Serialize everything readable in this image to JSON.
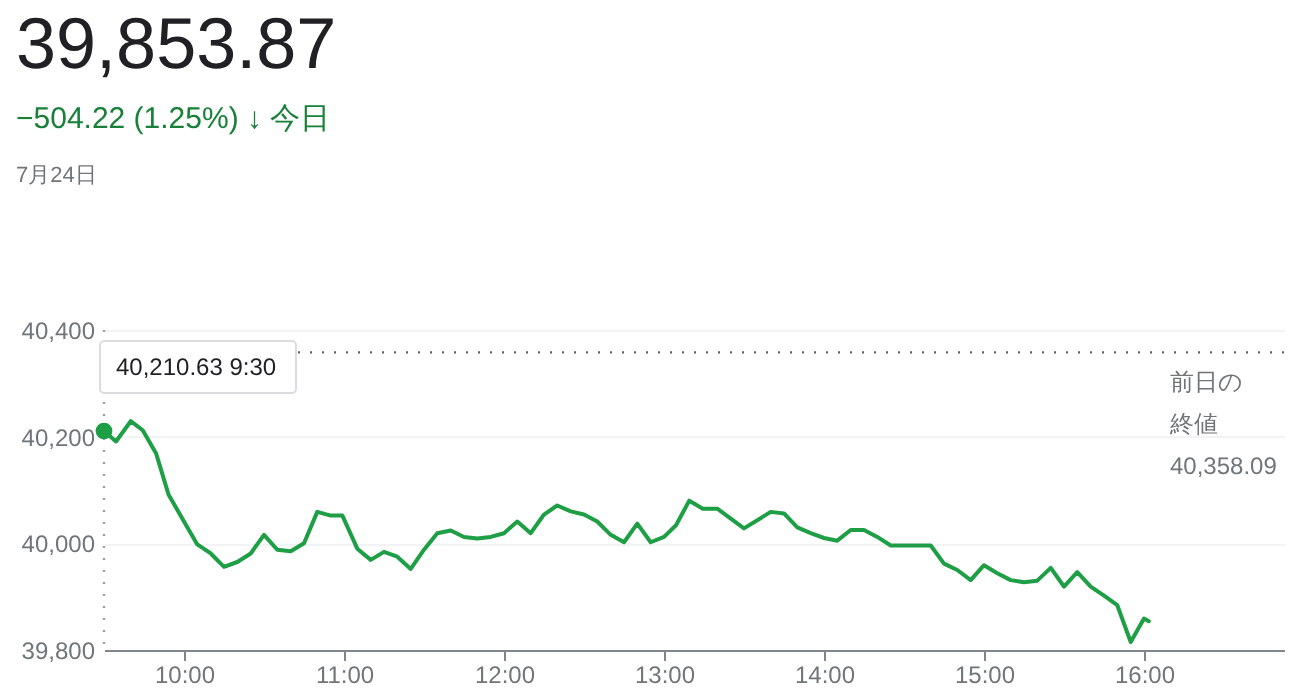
{
  "chart_data": {
    "type": "line",
    "title": "39,853.87",
    "subtitle": "−504.22 (1.25%) ↓ 今日",
    "annotations": [
      "7月24日",
      {
        "text": "40,210.63 9:30",
        "x": 9.5,
        "y": 40210.63
      }
    ],
    "x": [
      9.5,
      9.575,
      9.667,
      9.742,
      9.825,
      9.904,
      10.0,
      10.083,
      10.167,
      10.25,
      10.333,
      10.417,
      10.5,
      10.583,
      10.667,
      10.75,
      10.833,
      10.917,
      10.99,
      11.083,
      11.167,
      11.25,
      11.333,
      11.417,
      11.5,
      11.583,
      11.667,
      11.75,
      11.833,
      11.917,
      12.0,
      12.083,
      12.167,
      12.25,
      12.333,
      12.417,
      12.5,
      12.583,
      12.667,
      12.75,
      12.833,
      12.917,
      13.0,
      13.075,
      13.158,
      13.242,
      13.333,
      13.5,
      13.667,
      13.75,
      13.833,
      13.917,
      14.0,
      14.083,
      14.167,
      14.25,
      14.333,
      14.417,
      14.667,
      14.75,
      14.833,
      14.917,
      15.0,
      15.083,
      15.167,
      15.25,
      15.333,
      15.417,
      15.5,
      15.583,
      15.667,
      15.75,
      15.833,
      15.917,
      16.0,
      16.03
    ],
    "series": [
      {
        "color": "#1e9e45",
        "values": [
          40210.63,
          40191,
          40229,
          40212,
          40169,
          40091,
          40041,
          39998,
          39981,
          39956,
          39965,
          39981,
          40016,
          39988,
          39985,
          40000,
          40059,
          40052,
          40052,
          39990,
          39969,
          39984,
          39975,
          39952,
          39988,
          40019,
          40024,
          40012,
          40009,
          40012,
          40019,
          40041,
          40019,
          40054,
          40071,
          40060,
          40054,
          40041,
          40016,
          40002,
          40037,
          40002,
          40012,
          40034,
          40080,
          40065,
          40065,
          40028,
          40059,
          40056,
          40030,
          40019,
          40010,
          40005,
          40025,
          40025,
          40012,
          39996,
          39996,
          39962,
          39950,
          39931,
          39959,
          39944,
          39931,
          39927,
          39930,
          39954,
          39919,
          39946,
          39919,
          39902,
          39884,
          39815,
          39859,
          39853.87
        ]
      }
    ],
    "xlim": [
      9.5,
      16.875
    ],
    "xticks": [
      {
        "value": 10,
        "label": "10:00"
      },
      {
        "value": 11,
        "label": "11:00"
      },
      {
        "value": 12,
        "label": "12:00"
      },
      {
        "value": 13,
        "label": "13:00"
      },
      {
        "value": 14,
        "label": "14:00"
      },
      {
        "value": 15,
        "label": "15:00"
      },
      {
        "value": 16,
        "label": "16:00"
      }
    ],
    "ylim": [
      39800,
      40400
    ],
    "yticks": [
      {
        "value": 39800,
        "label": "39,800"
      },
      {
        "value": 40000,
        "label": "40,000"
      },
      {
        "value": 40200,
        "label": "40,200"
      },
      {
        "value": 40400,
        "label": "40,400"
      }
    ],
    "ref_lines": [
      {
        "axis": "y",
        "value": 40358.09,
        "label": "前日の終値\n40,358.09",
        "color": "#5f6368",
        "line_style": "dotted"
      },
      {
        "axis": "x",
        "value": 9.5,
        "color": "#9aa0a6",
        "line_style": "dotted"
      }
    ],
    "grid": "y"
  }
}
